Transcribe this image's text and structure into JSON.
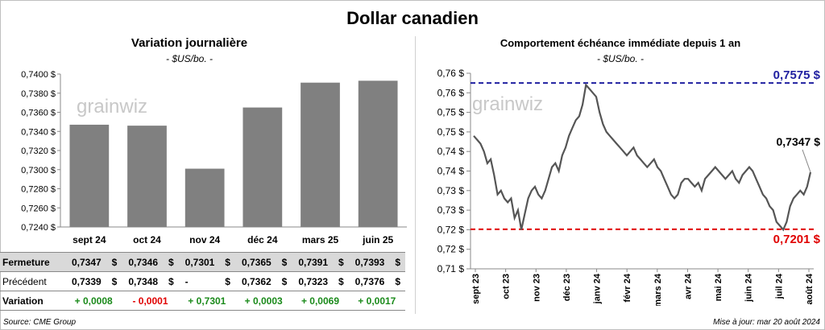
{
  "title": "Dollar canadien",
  "left": {
    "title": "Variation  journalière",
    "subtitle": "- $US/bo. -",
    "watermark": "grainwiz"
  },
  "right": {
    "title": "Comportement échéance immédiate depuis 1 an",
    "subtitle": "- $US/bo. -",
    "watermark": "grainwiz",
    "last_label": "0,7347 $",
    "high_label": "0,7575 $",
    "low_label": "0,7201 $"
  },
  "table": {
    "rows": [
      {
        "label": "Fermeture",
        "values": [
          "0,7347",
          "0,7346",
          "0,7301",
          "0,7365",
          "0,7391",
          "0,7393"
        ],
        "unit": "$"
      },
      {
        "label": "Précédent",
        "values": [
          "0,7339",
          "0,7348",
          "-",
          "0,7362",
          "0,7323",
          "0,7376"
        ],
        "unit": "$"
      },
      {
        "label": "Variation",
        "values": [
          "+ 0,0008",
          "- 0,0001",
          "+ 0,7301",
          "+ 0,0003",
          "+ 0,0069",
          "+ 0,0017"
        ],
        "unit": ""
      }
    ]
  },
  "source": "Source: CME Group",
  "update": "Mise à jour: mar 20 août 2024",
  "chart_data": [
    {
      "type": "bar",
      "categories": [
        "sept 24",
        "oct 24",
        "nov 24",
        "déc 24",
        "mars 25",
        "juin 25"
      ],
      "values": [
        0.7347,
        0.7346,
        0.7301,
        0.7365,
        0.7391,
        0.7393
      ],
      "ylim": [
        0.724,
        0.74
      ],
      "yticks": [
        "0,7240 $",
        "0,7260 $",
        "0,7280 $",
        "0,7300 $",
        "0,7320 $",
        "0,7340 $",
        "0,7360 $",
        "0,7380 $",
        "0,7400 $"
      ],
      "bar_color": "#808080"
    },
    {
      "type": "line",
      "x_labels": [
        "sept 23",
        "oct 23",
        "nov 23",
        "déc 23",
        "janv 24",
        "févr 24",
        "mars 24",
        "avr 24",
        "mai 24",
        "juin 24",
        "juil 24",
        "août 24"
      ],
      "values": [
        0.744,
        0.743,
        0.742,
        0.74,
        0.737,
        0.738,
        0.734,
        0.729,
        0.73,
        0.728,
        0.727,
        0.728,
        0.723,
        0.725,
        0.72,
        0.724,
        0.728,
        0.73,
        0.731,
        0.729,
        0.728,
        0.73,
        0.733,
        0.736,
        0.737,
        0.735,
        0.739,
        0.741,
        0.744,
        0.746,
        0.748,
        0.749,
        0.752,
        0.757,
        0.756,
        0.755,
        0.754,
        0.75,
        0.747,
        0.745,
        0.744,
        0.743,
        0.742,
        0.741,
        0.74,
        0.739,
        0.74,
        0.741,
        0.739,
        0.738,
        0.737,
        0.736,
        0.737,
        0.738,
        0.736,
        0.735,
        0.733,
        0.731,
        0.729,
        0.728,
        0.729,
        0.732,
        0.733,
        0.733,
        0.732,
        0.731,
        0.732,
        0.73,
        0.733,
        0.734,
        0.735,
        0.736,
        0.735,
        0.734,
        0.733,
        0.734,
        0.735,
        0.733,
        0.732,
        0.734,
        0.735,
        0.736,
        0.735,
        0.733,
        0.731,
        0.729,
        0.728,
        0.726,
        0.725,
        0.722,
        0.721,
        0.72,
        0.722,
        0.726,
        0.728,
        0.729,
        0.73,
        0.729,
        0.731,
        0.7347
      ],
      "ylim": [
        0.71,
        0.76
      ],
      "yticks": [
        "0,71 $",
        "0,72 $",
        "0,72 $",
        "0,73 $",
        "0,73 $",
        "0,74 $",
        "0,74 $",
        "0,75 $",
        "0,75 $",
        "0,76 $",
        "0,76 $"
      ],
      "high": 0.7575,
      "low": 0.7201,
      "last": 0.7347,
      "line_color": "#555555",
      "high_color": "#1f1fa0",
      "low_color": "#e00000"
    }
  ]
}
